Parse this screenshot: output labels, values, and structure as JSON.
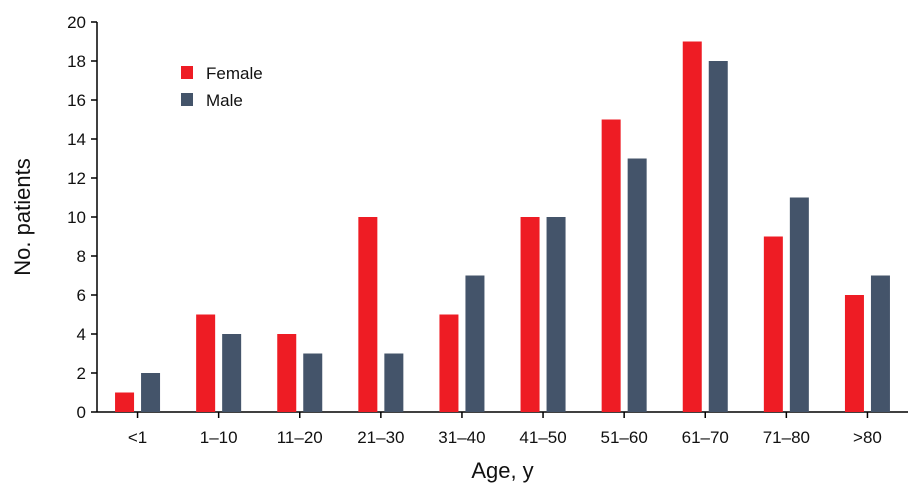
{
  "chart_data": {
    "type": "bar",
    "title": "",
    "xlabel": "Age, y",
    "ylabel": "No. patients",
    "ylim": [
      0,
      20
    ],
    "yticks": [
      "0",
      "2",
      "4",
      "6",
      "8",
      "10",
      "12",
      "14",
      "16",
      "18",
      "20"
    ],
    "categories": [
      "<1",
      "1–10",
      "11–20",
      "21–30",
      "31–40",
      "41–50",
      "51–60",
      "61–70",
      "71–80",
      ">80"
    ],
    "series": [
      {
        "name": "Female",
        "color": "#ee1c24",
        "values": [
          1,
          5,
          4,
          10,
          5,
          10,
          15,
          19,
          9,
          6
        ]
      },
      {
        "name": "Male",
        "color": "#44546a",
        "values": [
          2,
          4,
          3,
          3,
          7,
          10,
          13,
          18,
          11,
          7
        ]
      }
    ],
    "grid": false,
    "legend_position": "top-left"
  }
}
